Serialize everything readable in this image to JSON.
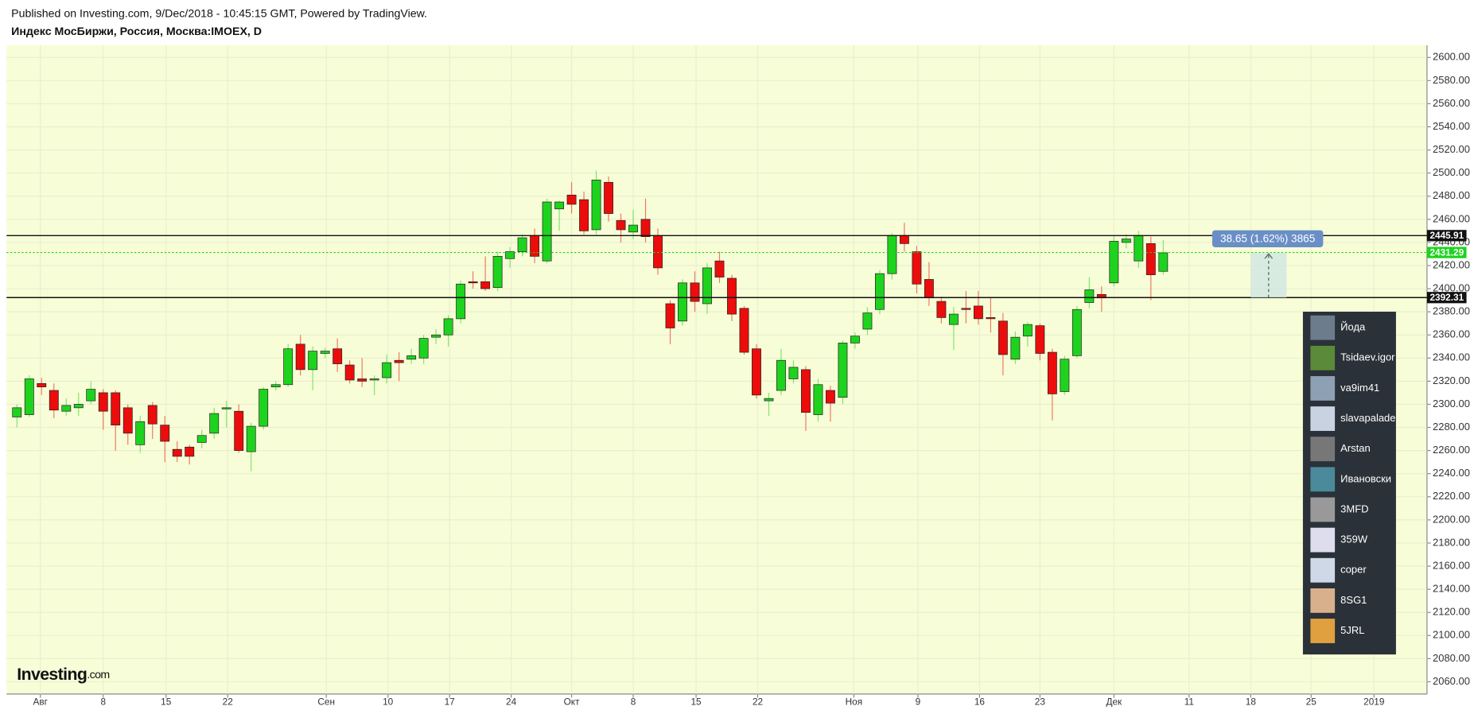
{
  "header": {
    "published": "Published on Investing.com, 9/Dec/2018 - 10:45:15 GMT, Powered by TradingView.",
    "symbol": "Индекс МосБиржи, Россия, Москва:IMOEX, D"
  },
  "chart_data": {
    "type": "candlestick",
    "x": [
      0,
      1,
      2,
      3,
      4,
      5,
      6,
      7,
      8,
      9,
      10,
      11,
      12,
      13,
      14,
      15,
      16,
      17,
      18,
      19,
      20,
      21,
      22,
      23,
      24,
      25,
      26,
      27,
      28,
      29,
      30,
      31,
      32,
      33,
      34,
      35,
      36,
      37,
      38,
      39,
      40,
      41,
      42,
      43,
      44,
      45,
      46,
      47,
      48,
      49,
      50,
      51,
      52,
      53,
      54,
      55,
      56,
      57,
      58,
      59,
      60,
      61,
      62,
      63,
      64,
      65,
      66,
      67,
      68,
      69,
      70,
      71,
      72,
      73,
      74,
      75,
      76,
      77,
      78,
      79,
      80,
      81,
      82,
      83,
      84,
      85,
      86,
      87,
      88,
      89,
      90,
      91,
      92,
      93
    ],
    "open": [
      2289,
      2291,
      2318,
      2312,
      2294,
      2297,
      2303,
      2310,
      2310,
      2297,
      2265,
      2299,
      2282,
      2261,
      2263,
      2267,
      2275,
      2296,
      2294,
      2259,
      2281,
      2315,
      2317,
      2352,
      2330,
      2344,
      2348,
      2334,
      2322,
      2321,
      2323,
      2338,
      2339,
      2340,
      2358,
      2360,
      2374,
      2406,
      2406,
      2401,
      2426,
      2432,
      2446,
      2424,
      2469,
      2481,
      2477,
      2451,
      2492,
      2459,
      2449,
      2460,
      2446,
      2387,
      2372,
      2405,
      2387,
      2424,
      2409,
      2383,
      2348,
      2303,
      2312,
      2322,
      2330,
      2291,
      2312,
      2306,
      2353,
      2365,
      2382,
      2413,
      2446,
      2432,
      2408,
      2389,
      2369,
      2383,
      2385,
      2375,
      2372,
      2339,
      2359,
      2368,
      2345,
      2311,
      2342,
      2388,
      2395,
      2405,
      2440,
      2424,
      2439,
      2415
    ],
    "high": [
      2300,
      2325,
      2323,
      2318,
      2305,
      2310,
      2320,
      2313,
      2312,
      2300,
      2290,
      2302,
      2290,
      2268,
      2265,
      2278,
      2297,
      2303,
      2300,
      2284,
      2315,
      2320,
      2352,
      2360,
      2350,
      2349,
      2357,
      2338,
      2340,
      2325,
      2343,
      2345,
      2348,
      2360,
      2365,
      2377,
      2407,
      2415,
      2428,
      2432,
      2436,
      2447,
      2452,
      2478,
      2476,
      2492,
      2484,
      2502,
      2497,
      2465,
      2468,
      2478,
      2452,
      2390,
      2408,
      2415,
      2422,
      2432,
      2412,
      2385,
      2352,
      2310,
      2348,
      2338,
      2333,
      2322,
      2316,
      2355,
      2362,
      2384,
      2416,
      2448,
      2457,
      2437,
      2423,
      2393,
      2384,
      2398,
      2398,
      2392,
      2379,
      2363,
      2371,
      2370,
      2348,
      2342,
      2385,
      2410,
      2402,
      2446,
      2447,
      2450,
      2445,
      2442
    ],
    "low": [
      2280,
      2289,
      2308,
      2288,
      2290,
      2290,
      2300,
      2278,
      2260,
      2265,
      2258,
      2270,
      2250,
      2250,
      2248,
      2262,
      2270,
      2280,
      2258,
      2242,
      2278,
      2312,
      2315,
      2325,
      2312,
      2340,
      2328,
      2318,
      2315,
      2308,
      2318,
      2320,
      2335,
      2335,
      2352,
      2350,
      2370,
      2400,
      2398,
      2398,
      2418,
      2428,
      2422,
      2422,
      2450,
      2465,
      2447,
      2447,
      2458,
      2440,
      2443,
      2440,
      2412,
      2352,
      2368,
      2380,
      2378,
      2405,
      2372,
      2343,
      2305,
      2290,
      2308,
      2318,
      2277,
      2285,
      2285,
      2300,
      2348,
      2360,
      2378,
      2408,
      2432,
      2396,
      2385,
      2370,
      2347,
      2370,
      2369,
      2362,
      2325,
      2335,
      2350,
      2338,
      2286,
      2308,
      2340,
      2383,
      2380,
      2402,
      2435,
      2418,
      2390,
      2412
    ],
    "close": [
      2297,
      2322,
      2315,
      2295,
      2299,
      2300,
      2313,
      2294,
      2282,
      2275,
      2285,
      2283,
      2268,
      2255,
      2255,
      2273,
      2292,
      2297,
      2260,
      2281,
      2313,
      2317,
      2348,
      2330,
      2346,
      2346,
      2335,
      2321,
      2320,
      2322,
      2336,
      2336,
      2342,
      2357,
      2360,
      2374,
      2404,
      2405,
      2400,
      2428,
      2432,
      2444,
      2428,
      2475,
      2475,
      2473,
      2450,
      2494,
      2465,
      2451,
      2455,
      2445,
      2418,
      2366,
      2405,
      2389,
      2418,
      2410,
      2378,
      2345,
      2308,
      2305,
      2338,
      2332,
      2293,
      2317,
      2301,
      2353,
      2359,
      2379,
      2413,
      2446,
      2439,
      2404,
      2392,
      2375,
      2378,
      2382,
      2374,
      2374,
      2343,
      2358,
      2369,
      2344,
      2309,
      2339,
      2382,
      2399,
      2392,
      2441,
      2443,
      2446,
      2412,
      2431
    ],
    "up_color": "#1ed31e",
    "down_color": "#ec0c0c",
    "xlim": [
      -0.84,
      114.4
    ],
    "xticks": [
      {
        "value": 1.9,
        "label": "Авг"
      },
      7.0,
      12.1,
      17.1,
      {
        "value": 25.1,
        "label": "Сен"
      },
      30.1,
      35.1,
      40.1,
      {
        "value": 45.0,
        "label": "Окт"
      },
      50.0,
      55.1,
      60.1,
      {
        "value": 67.9,
        "label": "Ноя"
      },
      73.1,
      78.1,
      83.0,
      {
        "value": 89.0,
        "label": "Дек"
      },
      95.1,
      100.1,
      105.0,
      110.1
    ],
    "xtick_labels": [
      "Авг",
      "8",
      "15",
      "22",
      "Сен",
      "10",
      "17",
      "24",
      "Окт",
      "8",
      "15",
      "22",
      "Ноя",
      "9",
      "16",
      "23",
      "Дек",
      "11",
      "18",
      "25",
      "2019"
    ],
    "ylim": [
      2049.4,
      2610.6
    ],
    "yticks": [
      {
        "value": 2060,
        "label": "2060.00"
      },
      {
        "value": 2080,
        "label": "2080.00"
      },
      {
        "value": 2100,
        "label": "2100.00"
      },
      {
        "value": 2120,
        "label": "2120.00"
      },
      {
        "value": 2140,
        "label": "2140.00"
      },
      {
        "value": 2160,
        "label": "2160.00"
      },
      {
        "value": 2180,
        "label": "2180.00"
      },
      {
        "value": 2200,
        "label": "2200.00"
      },
      {
        "value": 2220,
        "label": "2220.00"
      },
      {
        "value": 2240,
        "label": "2240.00"
      },
      {
        "value": 2260,
        "label": "2260.00"
      },
      {
        "value": 2280,
        "label": "2280.00"
      },
      {
        "value": 2300,
        "label": "2300.00"
      },
      {
        "value": 2320,
        "label": "2320.00"
      },
      {
        "value": 2340,
        "label": "2340.00"
      },
      {
        "value": 2360,
        "label": "2360.00"
      },
      {
        "value": 2380,
        "label": "2380.00"
      },
      {
        "value": 2400,
        "label": "2400.00"
      },
      {
        "value": 2420,
        "label": "2420.00"
      },
      {
        "value": 2440,
        "label": "2440.00"
      },
      {
        "value": 2460,
        "label": "2460.00"
      },
      {
        "value": 2480,
        "label": "2480.00"
      },
      {
        "value": 2500,
        "label": "2500.00"
      },
      {
        "value": 2520,
        "label": "2520.00"
      },
      {
        "value": 2540,
        "label": "2540.00"
      },
      {
        "value": 2560,
        "label": "2560.00"
      },
      {
        "value": 2580,
        "label": "2580.00"
      },
      {
        "value": 2600,
        "label": "2600.00"
      }
    ],
    "grid": true,
    "hlines": [
      2445.91,
      2392.31
    ],
    "last_price": 2431.29,
    "measure": {
      "label": "38.65 (1.62%) 3865",
      "x": [
        100.1,
        103.0
      ],
      "y": [
        2392.31,
        2430.96
      ]
    }
  },
  "users": [
    "Йода",
    "Tsidaev.igor",
    "va9im41",
    "slavapalade",
    "Arstan",
    "Ивановски",
    "3MFD",
    "359W",
    "coper",
    "8SG1",
    "5JRL"
  ],
  "logo": {
    "brand": "Investing",
    "suffix": ".com"
  }
}
